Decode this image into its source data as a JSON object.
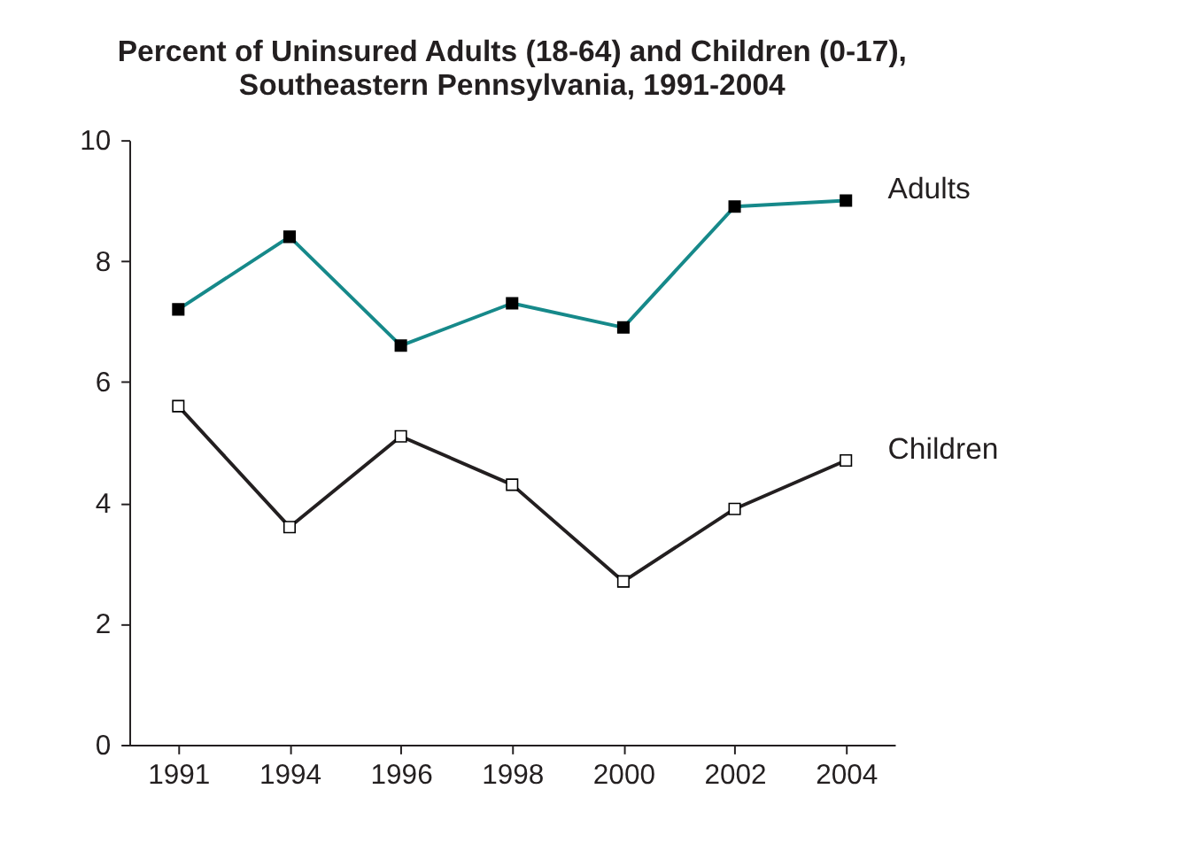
{
  "chart_data": {
    "type": "line",
    "title": "Percent of Uninsured Adults (18-64) and Children (0-17), Southeastern Pennsylvania, 1991-2004",
    "categories": [
      "1991",
      "1994",
      "1996",
      "1998",
      "2000",
      "2002",
      "2004"
    ],
    "series": [
      {
        "name": "Adults",
        "color": "#16898a",
        "values": [
          7.2,
          8.4,
          6.6,
          7.3,
          6.9,
          8.9,
          9.0
        ]
      },
      {
        "name": "Children",
        "color": "#231f20",
        "values": [
          5.6,
          3.6,
          5.1,
          4.3,
          2.7,
          3.9,
          4.7
        ]
      }
    ],
    "ylim": [
      0,
      10
    ],
    "yticks": [
      0,
      2,
      4,
      6,
      8,
      10
    ],
    "marker": "square",
    "line_style": "solid"
  }
}
